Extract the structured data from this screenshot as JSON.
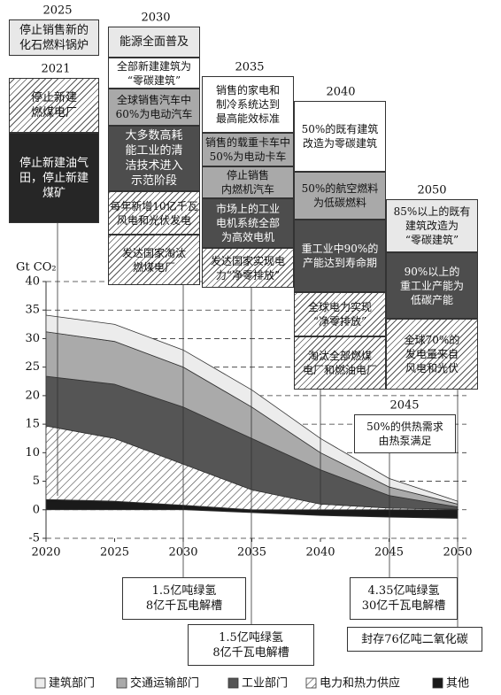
{
  "chart_data": {
    "type": "area",
    "stacked": true,
    "y_label": "Gt CO₂",
    "x": [
      2020,
      2025,
      2030,
      2035,
      2040,
      2045,
      2050
    ],
    "xlim": [
      2020,
      2050
    ],
    "xticks": [
      2020,
      2025,
      2030,
      2035,
      2040,
      2045,
      2050
    ],
    "ylim": [
      -5,
      40
    ],
    "yticks": [
      -5,
      0,
      5,
      10,
      15,
      20,
      25,
      30,
      35,
      40
    ],
    "grid": true,
    "series": [
      {
        "name": "建筑部门",
        "color": "#ececec",
        "values": [
          2.9,
          3,
          3,
          3,
          2.5,
          1.5,
          0.5
        ]
      },
      {
        "name": "交通运输部门",
        "color": "#aaaaaa",
        "values": [
          7.8,
          7.5,
          7,
          5.5,
          3,
          1.5,
          0.5
        ]
      },
      {
        "name": "工业部门",
        "color": "#555555",
        "values": [
          8.7,
          9.5,
          10,
          9,
          6,
          2.2,
          0.4
        ]
      },
      {
        "name": "电力和热力供应",
        "color": "#ffffff",
        "pattern": "hatch",
        "values": [
          12.9,
          11,
          7.2,
          3.5,
          1,
          0.3,
          0.1
        ]
      },
      {
        "name": "其他",
        "color": "#1a1a1a",
        "values": [
          1.8,
          1.5,
          0.8,
          -0.5,
          -1,
          -1.3,
          -1.5
        ]
      }
    ]
  },
  "milestones": [
    {
      "year": "2025",
      "items": [
        "停止销售新的\n化石燃料锅炉"
      ]
    },
    {
      "year": "2021",
      "items": [
        "停止新建\n燃煤电厂",
        "停止新建油气\n田，停止新建\n煤矿"
      ]
    },
    {
      "year": "2030",
      "items": [
        "能源全面普及",
        "全部新建建筑为\n“零碳建筑”",
        "全球销售汽车中\n60%为电动汽车",
        "大多数高耗\n能工业的清\n洁技术进入\n示范阶段",
        "每年新增10亿千瓦\n风电和光伏发电",
        "发达国家淘汰\n燃煤电厂"
      ]
    },
    {
      "year": "2035",
      "items": [
        "销售的家电和\n制冷系统达到\n最高能效标准",
        "销售的载重卡车中\n50%为电动卡车",
        "停止销售\n内燃机汽车",
        "市场上的工业\n电机系统全部\n为高效电机",
        "发达国家实现电\n力“净零排放”"
      ]
    },
    {
      "year": "2040",
      "items": [
        "50%的既有建筑\n改造为零碳建筑",
        "50%的航空燃料\n为低碳燃料",
        "重工业中90%的\n产能达到寿命期",
        "全球电力实现\n“净零排放”",
        "淘汰全部燃煤\n电厂和燃油电厂"
      ]
    },
    {
      "year": "2050",
      "items": [
        "85%以上的既有\n建筑改造为\n“零碳建筑”",
        "90%以上的\n重工业产能为\n低碳产能",
        "全球70%的\n发电量来自\n风电和光伏"
      ]
    },
    {
      "year": "2045",
      "items": [
        "50%的供热需求\n由热泵满足"
      ]
    }
  ],
  "lower_notes": [
    "1.5亿吨绿氢\n8亿千瓦电解槽",
    "1.5亿吨绿氢\n8亿千瓦电解槽",
    "4.35亿吨绿氢\n30亿千瓦电解槽",
    "封存76亿吨二氧化碳"
  ]
}
